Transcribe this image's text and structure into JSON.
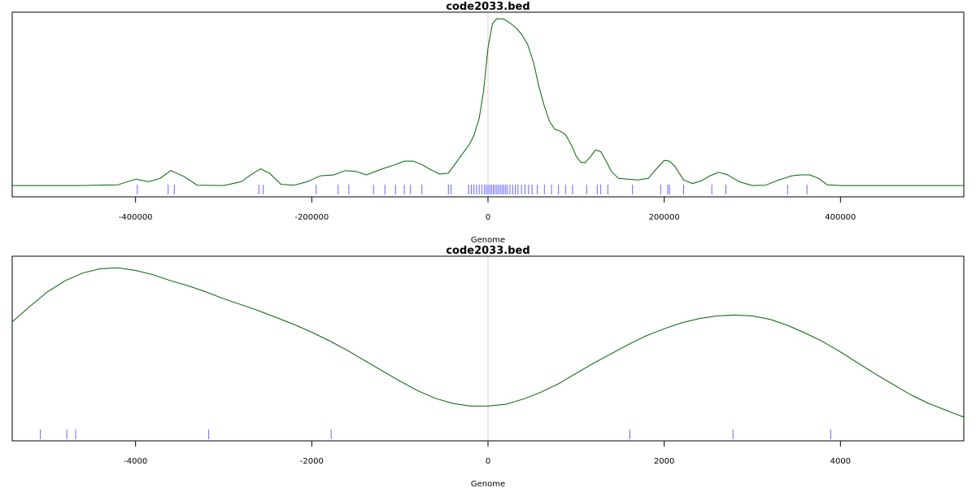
{
  "chart_data": [
    {
      "type": "line",
      "title": "code2033.bed",
      "xlabel": "Genome",
      "ylabel": "",
      "xlim": [
        -540000,
        540000
      ],
      "ylim": [
        0,
        1
      ],
      "ticks": [
        -400000,
        -200000,
        0,
        200000,
        400000
      ],
      "tick_labels": [
        "-400000",
        "-200000",
        "0",
        "200000",
        "400000"
      ],
      "center_line_x": 0,
      "curve_color": "#006400",
      "rug_color": "#6666ff",
      "center_color": "#e8c8d0",
      "series": [
        {
          "x": [
            -540000,
            -460000,
            -420000,
            -400000,
            -385000,
            -372000,
            -360000,
            -345000,
            -330000,
            -300000,
            -280000,
            -268000,
            -258000,
            -248000,
            -235000,
            -220000,
            -205000,
            -190000,
            -175000,
            -162000,
            -150000,
            -138000,
            -120000,
            -105000,
            -95000,
            -85000,
            -75000,
            -65000,
            -55000,
            -45000,
            -35000,
            -28000,
            -22000,
            -16000,
            -10000,
            -5000,
            0,
            5000,
            10000,
            18000,
            25000,
            32000,
            38000,
            45000,
            52000,
            58000,
            64000,
            70000,
            76000,
            82000,
            88000,
            95000,
            100000,
            105000,
            110000,
            116000,
            122000,
            128000,
            134000,
            140000,
            148000,
            158000,
            170000,
            182000,
            192000,
            200000,
            206000,
            212000,
            222000,
            232000,
            242000,
            252000,
            262000,
            272000,
            285000,
            300000,
            315000,
            330000,
            345000,
            355000,
            365000,
            375000,
            385000,
            400000,
            450000,
            540000
          ],
          "y": [
            0.028,
            0.028,
            0.032,
            0.065,
            0.05,
            0.07,
            0.115,
            0.08,
            0.03,
            0.028,
            0.05,
            0.095,
            0.125,
            0.1,
            0.035,
            0.03,
            0.05,
            0.085,
            0.09,
            0.115,
            0.11,
            0.09,
            0.125,
            0.15,
            0.17,
            0.17,
            0.15,
            0.12,
            0.095,
            0.1,
            0.17,
            0.22,
            0.26,
            0.32,
            0.42,
            0.58,
            0.83,
            0.97,
            1.0,
            0.998,
            0.975,
            0.945,
            0.91,
            0.85,
            0.74,
            0.6,
            0.49,
            0.4,
            0.355,
            0.345,
            0.325,
            0.26,
            0.2,
            0.165,
            0.16,
            0.195,
            0.235,
            0.225,
            0.17,
            0.11,
            0.07,
            0.065,
            0.06,
            0.07,
            0.13,
            0.175,
            0.17,
            0.14,
            0.06,
            0.04,
            0.055,
            0.085,
            0.105,
            0.09,
            0.05,
            0.028,
            0.03,
            0.06,
            0.085,
            0.09,
            0.09,
            0.07,
            0.032,
            0.028,
            0.028,
            0.028
          ]
        }
      ],
      "rug": [
        -398000,
        -363000,
        -356000,
        -260000,
        -255000,
        -195000,
        -170000,
        -158000,
        -130000,
        -117000,
        -105000,
        -95000,
        -88000,
        -75000,
        -45000,
        -42000,
        -22000,
        -19000,
        -16000,
        -13000,
        -10000,
        -7000,
        -4000,
        -2000,
        0,
        2000,
        4000,
        6000,
        8000,
        10000,
        12000,
        14000,
        16000,
        18000,
        20000,
        22000,
        25000,
        28000,
        31000,
        34000,
        38000,
        42000,
        46000,
        50000,
        56000,
        64000,
        72000,
        80000,
        88000,
        96000,
        112000,
        124000,
        128000,
        136000,
        164000,
        196000,
        204000,
        206000,
        222000,
        254000,
        270000,
        340000,
        362000
      ]
    },
    {
      "type": "line",
      "title": "code2033.bed",
      "xlabel": "Genome",
      "ylabel": "",
      "xlim": [
        -5400,
        5400
      ],
      "ylim": [
        0,
        1
      ],
      "ticks": [
        -4000,
        -2000,
        0,
        2000,
        4000
      ],
      "tick_labels": [
        "-4000",
        "-2000",
        "0",
        "2000",
        "4000"
      ],
      "center_line_x": 0,
      "curve_color": "#006400",
      "rug_color": "#6666ff",
      "center_color": "#e8c8d0",
      "series": [
        {
          "x": [
            -5400,
            -5200,
            -5000,
            -4800,
            -4600,
            -4400,
            -4200,
            -4000,
            -3800,
            -3600,
            -3400,
            -3200,
            -3000,
            -2800,
            -2600,
            -2400,
            -2200,
            -2000,
            -1800,
            -1600,
            -1400,
            -1200,
            -1000,
            -800,
            -600,
            -400,
            -200,
            0,
            200,
            400,
            600,
            800,
            1000,
            1200,
            1400,
            1600,
            1800,
            2000,
            2200,
            2400,
            2600,
            2800,
            3000,
            3200,
            3400,
            3600,
            3800,
            4000,
            4200,
            4400,
            4600,
            4800,
            5000,
            5200,
            5400
          ],
          "y": [
            0.655,
            0.745,
            0.83,
            0.895,
            0.94,
            0.965,
            0.97,
            0.955,
            0.93,
            0.895,
            0.865,
            0.83,
            0.79,
            0.755,
            0.72,
            0.68,
            0.64,
            0.595,
            0.545,
            0.49,
            0.43,
            0.37,
            0.31,
            0.255,
            0.21,
            0.18,
            0.165,
            0.165,
            0.175,
            0.205,
            0.245,
            0.295,
            0.355,
            0.415,
            0.47,
            0.525,
            0.575,
            0.615,
            0.65,
            0.675,
            0.69,
            0.695,
            0.69,
            0.67,
            0.635,
            0.59,
            0.54,
            0.48,
            0.415,
            0.35,
            0.29,
            0.23,
            0.18,
            0.14,
            0.1
          ]
        }
      ],
      "rug": [
        -5080,
        -4780,
        -4680,
        -3170,
        -1780,
        1610,
        2780,
        3890
      ]
    }
  ]
}
